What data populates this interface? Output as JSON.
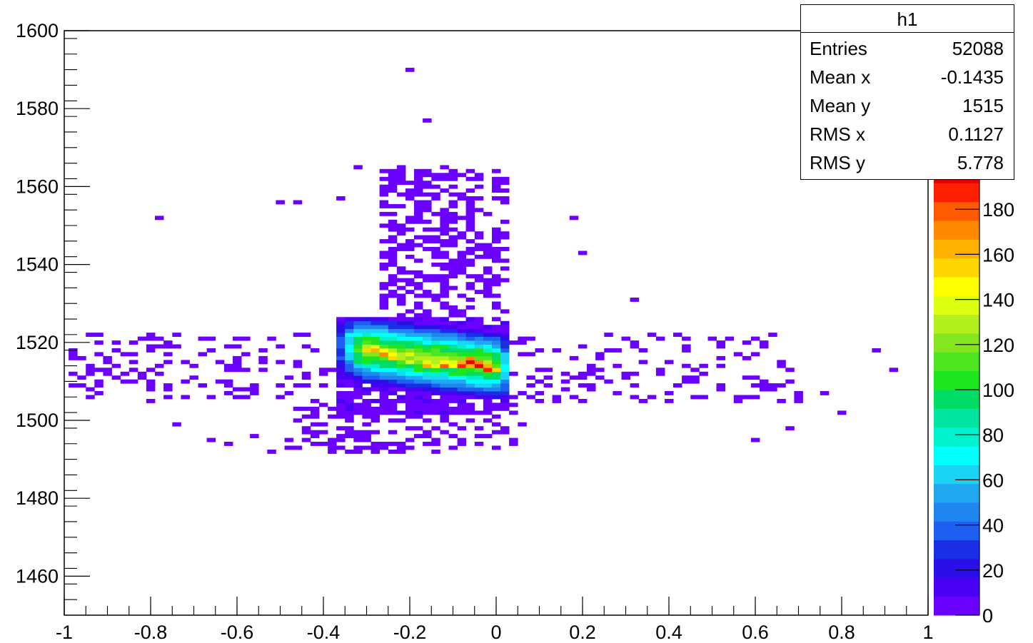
{
  "chart_data": {
    "type": "heatmap",
    "title": "",
    "xlabel": "",
    "ylabel": "",
    "xlim": [
      -1,
      1
    ],
    "ylim": [
      1450,
      1600
    ],
    "x_ticks": [
      "-1",
      "-0.8",
      "-0.6",
      "-0.4",
      "-0.2",
      "0",
      "0.2",
      "0.4",
      "0.6",
      "0.8",
      "1"
    ],
    "y_ticks": [
      "1460",
      "1480",
      "1500",
      "1520",
      "1540",
      "1560",
      "1580",
      "1600"
    ],
    "bin_width": {
      "x": 0.02,
      "y": 1.0
    },
    "palette": [
      "#6a00ff",
      "#4a00f5",
      "#2a10e6",
      "#1a2ee6",
      "#1e5ef0",
      "#1f86f0",
      "#1fa8f0",
      "#19d4f5",
      "#00ffff",
      "#00f2cc",
      "#00e6a0",
      "#00dd66",
      "#1ee61e",
      "#4ee61e",
      "#86e61e",
      "#b4f01e",
      "#ddff10",
      "#ffff00",
      "#ffd700",
      "#ffb000",
      "#ff8a00",
      "#ff5a00",
      "#ff2000",
      "#e60000"
    ],
    "z_axis": {
      "min": 0,
      "max": 200,
      "ticks": [
        "0",
        "20",
        "40",
        "60",
        "80",
        "100",
        "120",
        "140",
        "160",
        "180"
      ]
    },
    "core_cells": [
      {
        "x": -0.3,
        "y": 1518,
        "z": 150
      },
      {
        "x": -0.28,
        "y": 1518,
        "z": 165
      },
      {
        "x": -0.26,
        "y": 1517,
        "z": 170
      },
      {
        "x": -0.24,
        "y": 1516,
        "z": 150
      },
      {
        "x": -0.2,
        "y": 1515,
        "z": 140
      },
      {
        "x": -0.16,
        "y": 1514,
        "z": 160
      },
      {
        "x": -0.12,
        "y": 1514,
        "z": 175
      },
      {
        "x": -0.08,
        "y": 1514,
        "z": 190
      },
      {
        "x": -0.06,
        "y": 1515,
        "z": 200
      },
      {
        "x": -0.04,
        "y": 1514,
        "z": 195
      },
      {
        "x": -0.02,
        "y": 1513,
        "z": 185
      }
    ],
    "stats": {
      "title": "h1",
      "rows": [
        {
          "label": "Entries",
          "value": "52088"
        },
        {
          "label": "Mean x",
          "value": "-0.1435"
        },
        {
          "label": "Mean y",
          "value": "1515"
        },
        {
          "label": "RMS x",
          "value": "0.1127"
        },
        {
          "label": "RMS y",
          "value": "5.778"
        }
      ]
    }
  }
}
